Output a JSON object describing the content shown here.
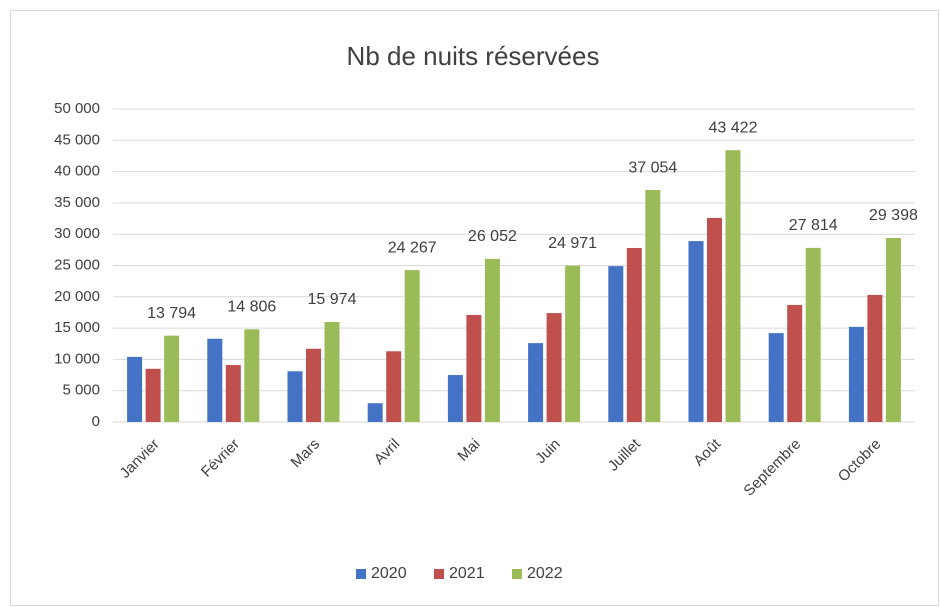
{
  "chart_data": {
    "type": "bar",
    "title": "Nb de nuits réservées",
    "categories": [
      "Janvier",
      "Février",
      "Mars",
      "Avril",
      "Mai",
      "Juin",
      "Juillet",
      "Août",
      "Septembre",
      "Octobre"
    ],
    "series": [
      {
        "name": "2020",
        "color": "#4472c4",
        "values": [
          10400,
          13300,
          8100,
          3000,
          7500,
          12600,
          24900,
          28900,
          14200,
          15200
        ]
      },
      {
        "name": "2021",
        "color": "#c0504d",
        "values": [
          8500,
          9100,
          11700,
          11300,
          17100,
          17400,
          27800,
          32600,
          18700,
          20300
        ]
      },
      {
        "name": "2022",
        "color": "#9bbb59",
        "values": [
          13794,
          14806,
          15974,
          24267,
          26052,
          24971,
          37054,
          43422,
          27814,
          29398
        ],
        "value_labels": [
          "13 794",
          "14 806",
          "15 974",
          "24 267",
          "26 052",
          "24 971",
          "37 054",
          "43 422",
          "27 814",
          "29 398"
        ]
      }
    ],
    "ylim": [
      0,
      50000
    ],
    "yticks": [
      0,
      {
        "value": 5000,
        "label": "5 000"
      },
      {
        "value": 10000,
        "label": "10 000"
      },
      {
        "value": 15000,
        "label": "15 000"
      },
      {
        "value": 20000,
        "label": "20 000"
      },
      {
        "value": 25000,
        "label": "25 000"
      },
      {
        "value": 30000,
        "label": "30 000"
      },
      {
        "value": 35000,
        "label": "35 000"
      },
      {
        "value": 40000,
        "label": "40 000"
      },
      {
        "value": 45000,
        "label": "45 000"
      },
      {
        "value": 50000,
        "label": "50 000"
      }
    ],
    "legend": "bottom"
  }
}
